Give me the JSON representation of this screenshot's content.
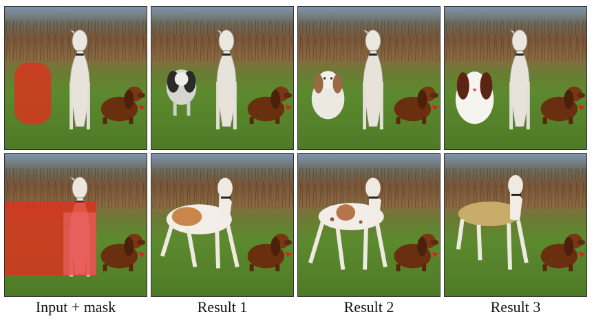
{
  "captions": {
    "input": "Input + mask",
    "result1": "Result 1",
    "result2": "Result 2",
    "result3": "Result 3"
  },
  "colors": {
    "sky": "#6f8fb0",
    "bushes": "#6b4a32",
    "grass": "#5f8a32",
    "mask": "#e0301e",
    "dachshund": "#6a2f0f",
    "whippet": "#e9e6df"
  }
}
